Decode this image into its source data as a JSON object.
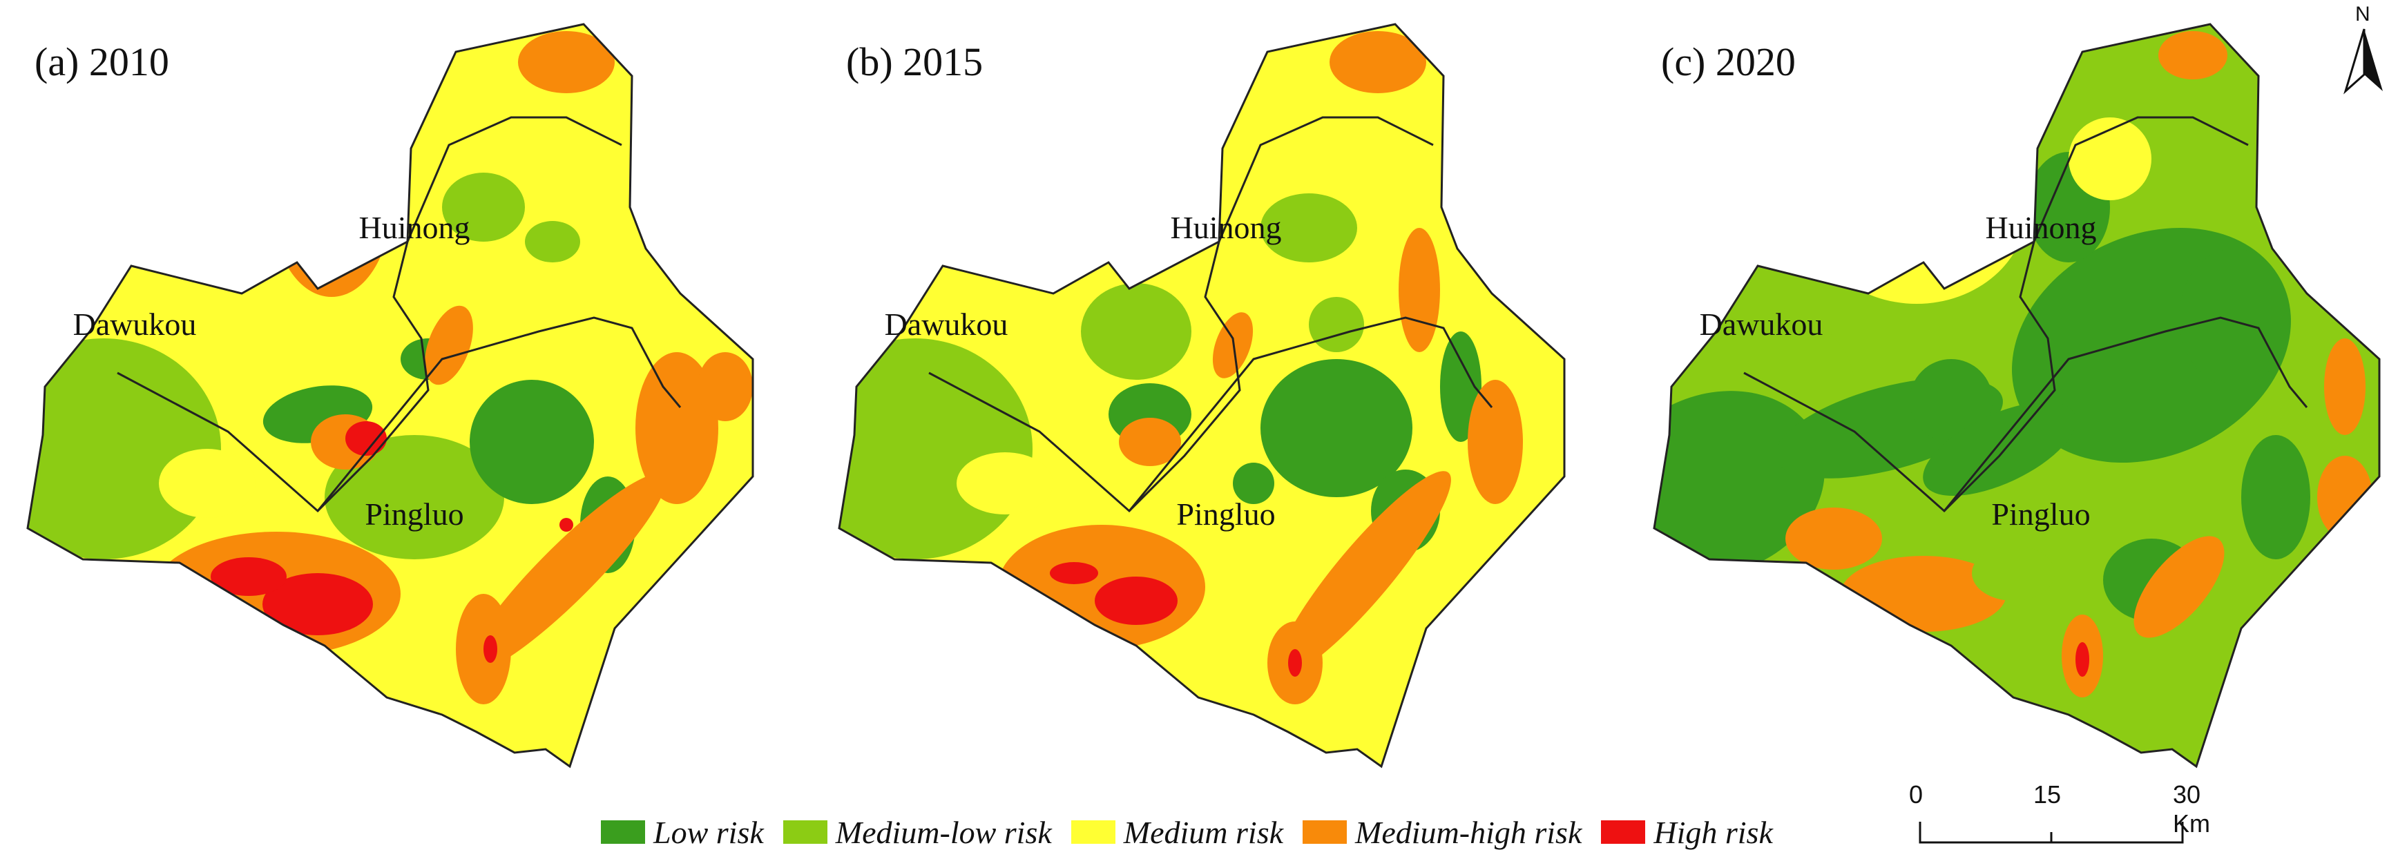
{
  "panels": [
    {
      "label": "(a) 2010",
      "regions": [
        "Huinong",
        "Dawukou",
        "Pingluo"
      ]
    },
    {
      "label": "(b) 2015",
      "regions": [
        "Huinong",
        "Dawukou",
        "Pingluo"
      ]
    },
    {
      "label": "(c) 2020",
      "regions": [
        "Huinong",
        "Dawukou",
        "Pingluo"
      ]
    }
  ],
  "legend": [
    {
      "label": "Low risk",
      "color": "#3a9e1e"
    },
    {
      "label": "Medium-low risk",
      "color": "#8ccc14"
    },
    {
      "label": "Medium risk",
      "color": "#ffff33"
    },
    {
      "label": "Medium-high risk",
      "color": "#f88a0a"
    },
    {
      "label": "High risk",
      "color": "#ee1111"
    }
  ],
  "scale_bar": {
    "ticks": [
      "0",
      "15",
      "30 Km"
    ]
  },
  "north_arrow": {
    "label": "N"
  }
}
